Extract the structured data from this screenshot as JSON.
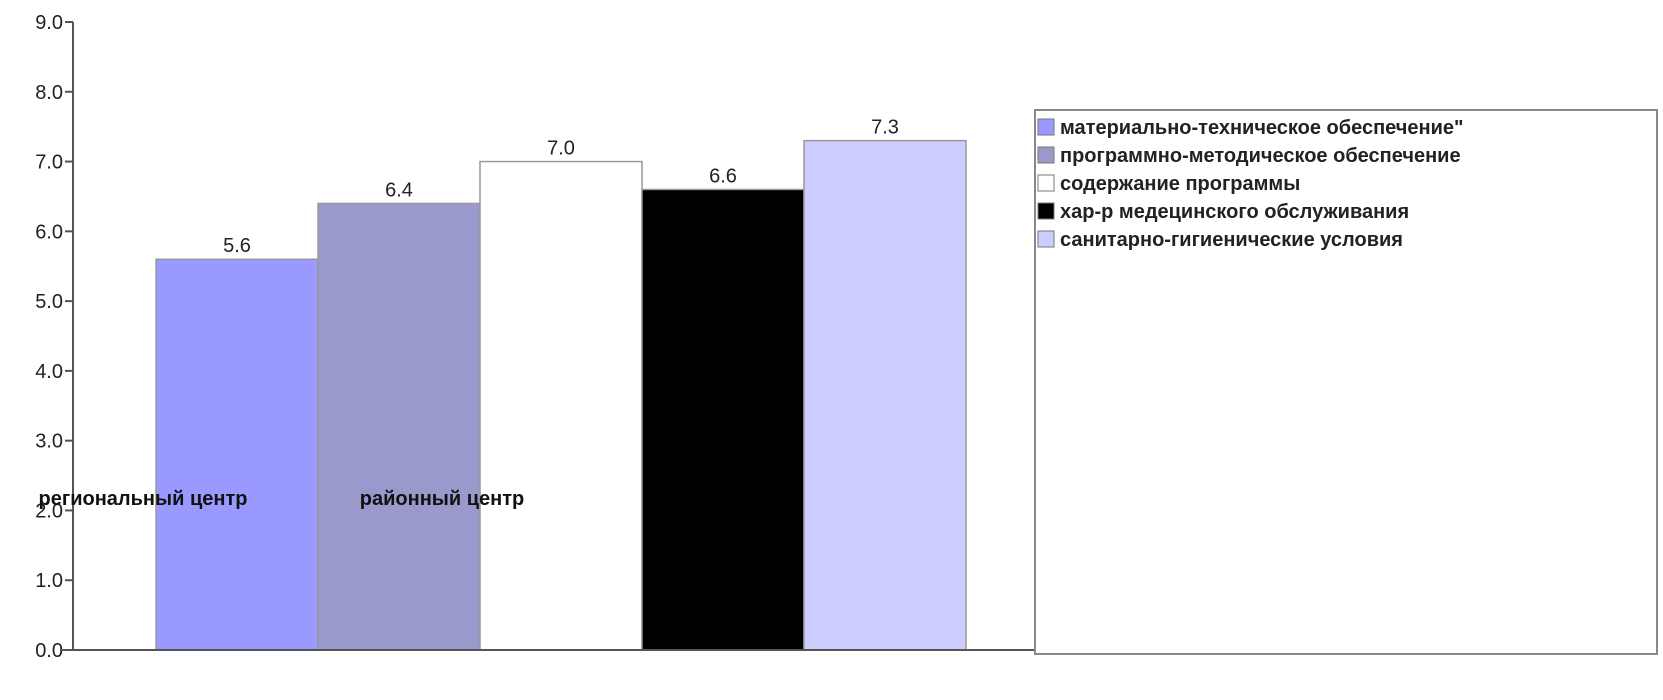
{
  "chart_data": {
    "type": "bar",
    "ylim": [
      0,
      9
    ],
    "yticks": [
      "0.0",
      "1.0",
      "2.0",
      "3.0",
      "4.0",
      "5.0",
      "6.0",
      "7.0",
      "8.0",
      "9.0"
    ],
    "grid": false,
    "legend_position": "right",
    "group_labels": [
      "региональный центр",
      "районный центр",
      ""
    ],
    "series": [
      {
        "name": "материально-техническое обеспечение\"",
        "value": 5.6,
        "label": "5.6",
        "color": "#9999ff"
      },
      {
        "name": "программно-методическое обеспечение",
        "value": 6.4,
        "label": "6.4",
        "color": "#9999cc"
      },
      {
        "name": "содержание программы",
        "value": 7.0,
        "label": "7.0",
        "color": "#ffffff"
      },
      {
        "name": "хар-р медецинского обслуживания",
        "value": 6.6,
        "label": "6.6",
        "color": "#000000"
      },
      {
        "name": "санитарно-гигиенические условия",
        "value": 7.3,
        "label": "7.3",
        "color": "#ccccff"
      }
    ]
  }
}
